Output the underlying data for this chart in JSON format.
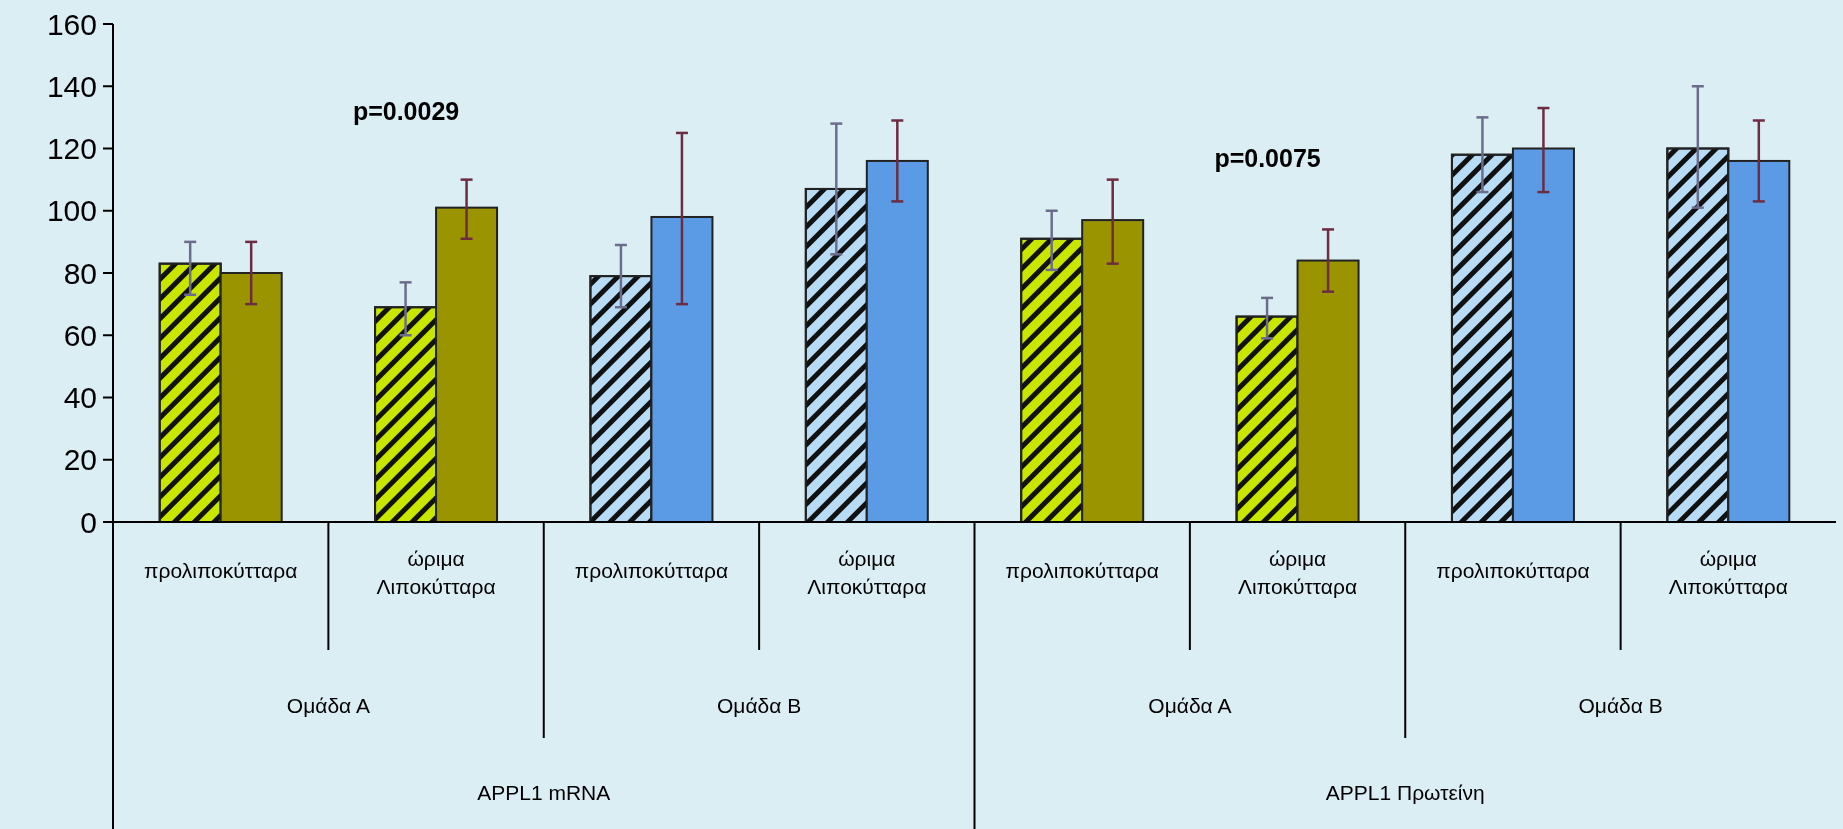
{
  "chart_data": {
    "type": "bar",
    "categories": [
      "προλιποκύτταρα",
      "ώριμα Λιποκύτταρα",
      "προλιποκύτταρα",
      "ώριμα Λιποκύτταρα",
      "προλιποκύτταρα",
      "ώριμα Λιποκύτταρα",
      "προλιποκύτταρα",
      "ώριμα Λιποκύτταρα"
    ],
    "series": [
      {
        "colors": [
          "#c8e600",
          "#c8e600",
          "#b8dcf5",
          "#b8dcf5",
          "#c8e600",
          "#c8e600",
          "#b8dcf5",
          "#b8dcf5"
        ],
        "values": [
          83,
          69,
          79,
          107,
          91,
          66,
          118,
          120
        ],
        "errors": [
          [
            73,
            90
          ],
          [
            60,
            77
          ],
          [
            69,
            89
          ],
          [
            86,
            128
          ],
          [
            81,
            100
          ],
          [
            59,
            72
          ],
          [
            106,
            130
          ],
          [
            101,
            140
          ]
        ]
      },
      {
        "colors": [
          "#9a9400",
          "#9a9400",
          "#5b9be6",
          "#5b9be6",
          "#9a9400",
          "#9a9400",
          "#5b9be6",
          "#5b9be6"
        ],
        "values": [
          80,
          101,
          98,
          116,
          97,
          84,
          120,
          116
        ],
        "errors": [
          [
            70,
            90
          ],
          [
            91,
            110
          ],
          [
            70,
            125
          ],
          [
            103,
            129
          ],
          [
            83,
            110
          ],
          [
            74,
            94
          ],
          [
            106,
            133
          ],
          [
            103,
            129
          ]
        ]
      }
    ],
    "annotations": [
      "p=0.0029",
      "p=0.0075",
      "Ομάδα Α",
      "Ομάδα Β",
      "Ομάδα Α",
      "Ομάδα Β",
      "APPL1 mRNA",
      "APPL1 Πρωτείνη"
    ],
    "ylim": [
      0,
      160
    ],
    "yticks": [
      0,
      20,
      40,
      60,
      80,
      100,
      120,
      140,
      160
    ],
    "grid": false
  }
}
